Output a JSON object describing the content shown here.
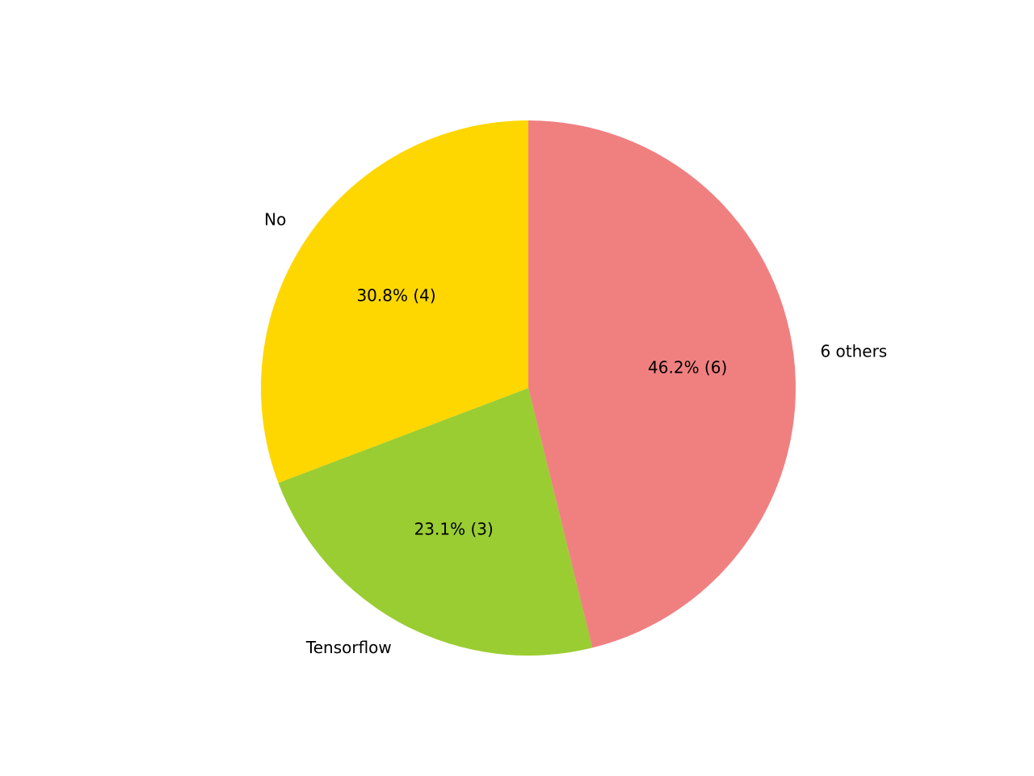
{
  "chart_data": {
    "type": "pie",
    "categories": [
      "6 others",
      "Tensorflow",
      "No"
    ],
    "values": [
      46.2,
      23.1,
      30.8
    ],
    "value_labels": [
      "46.2%  (6)",
      "23.1%  (3)",
      "30.8%  (4)"
    ],
    "colors": [
      "#f08080",
      "#9acd32",
      "#ffd700"
    ]
  }
}
